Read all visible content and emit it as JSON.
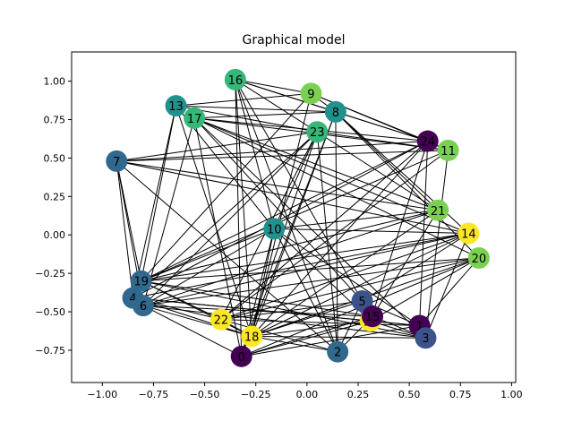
{
  "chart_data": {
    "type": "graph",
    "title": "Graphical model",
    "xlim": [
      -1.15,
      1.02
    ],
    "ylim": [
      -0.96,
      1.19
    ],
    "xticks": [
      -1.0,
      -0.75,
      -0.5,
      -0.25,
      0.0,
      0.25,
      0.5,
      0.75,
      1.0
    ],
    "yticks": [
      -0.75,
      -0.5,
      -0.25,
      0.0,
      0.25,
      0.5,
      0.75,
      1.0
    ],
    "xtick_labels": [
      "−1.00",
      "−0.75",
      "−0.50",
      "−0.25",
      "0.00",
      "0.25",
      "0.50",
      "0.75",
      "1.00"
    ],
    "ytick_labels": [
      "−0.75",
      "−0.50",
      "−0.25",
      "0.00",
      "0.25",
      "0.50",
      "0.75",
      "1.00"
    ],
    "nodes": [
      {
        "id": "0",
        "x": -0.32,
        "y": -0.79,
        "color": "#440154"
      },
      {
        "id": "1",
        "x": 0.55,
        "y": -0.59,
        "color": "#440154"
      },
      {
        "id": "2",
        "x": 0.15,
        "y": -0.76,
        "color": "#31688e"
      },
      {
        "id": "3",
        "x": 0.58,
        "y": -0.67,
        "color": "#3b528b"
      },
      {
        "id": "4",
        "x": -0.85,
        "y": -0.41,
        "color": "#31688e"
      },
      {
        "id": "5",
        "x": 0.27,
        "y": -0.43,
        "color": "#3b528b"
      },
      {
        "id": "6",
        "x": -0.8,
        "y": -0.46,
        "color": "#31688e"
      },
      {
        "id": "7",
        "x": -0.93,
        "y": 0.48,
        "color": "#31688e"
      },
      {
        "id": "8",
        "x": 0.14,
        "y": 0.8,
        "color": "#21918c"
      },
      {
        "id": "9",
        "x": 0.02,
        "y": 0.92,
        "color": "#7ad151"
      },
      {
        "id": "10",
        "x": -0.16,
        "y": 0.04,
        "color": "#21918c"
      },
      {
        "id": "11",
        "x": 0.69,
        "y": 0.55,
        "color": "#7ad151"
      },
      {
        "id": "12",
        "x": 0.31,
        "y": -0.56,
        "color": "#fde725"
      },
      {
        "id": "13",
        "x": -0.64,
        "y": 0.84,
        "color": "#21918c"
      },
      {
        "id": "14",
        "x": 0.79,
        "y": 0.01,
        "color": "#fde725"
      },
      {
        "id": "15",
        "x": 0.32,
        "y": -0.53,
        "color": "#440154"
      },
      {
        "id": "16",
        "x": -0.35,
        "y": 1.01,
        "color": "#35b779"
      },
      {
        "id": "17",
        "x": -0.55,
        "y": 0.76,
        "color": "#35b779"
      },
      {
        "id": "18",
        "x": -0.27,
        "y": -0.66,
        "color": "#fde725"
      },
      {
        "id": "19",
        "x": -0.81,
        "y": -0.3,
        "color": "#31688e"
      },
      {
        "id": "20",
        "x": 0.84,
        "y": -0.15,
        "color": "#7ad151"
      },
      {
        "id": "21",
        "x": 0.64,
        "y": 0.16,
        "color": "#7ad151"
      },
      {
        "id": "22",
        "x": -0.42,
        "y": -0.55,
        "color": "#fde725"
      },
      {
        "id": "23",
        "x": 0.05,
        "y": 0.67,
        "color": "#35b779"
      },
      {
        "id": "24",
        "x": 0.59,
        "y": 0.61,
        "color": "#440154"
      }
    ],
    "edges": [
      [
        "7",
        "24"
      ],
      [
        "7",
        "21"
      ],
      [
        "7",
        "14"
      ],
      [
        "7",
        "19"
      ],
      [
        "7",
        "4"
      ],
      [
        "7",
        "6"
      ],
      [
        "7",
        "23"
      ],
      [
        "7",
        "11"
      ],
      [
        "7",
        "2"
      ],
      [
        "13",
        "19"
      ],
      [
        "13",
        "4"
      ],
      [
        "13",
        "18"
      ],
      [
        "13",
        "8"
      ],
      [
        "13",
        "10"
      ],
      [
        "13",
        "23"
      ],
      [
        "13",
        "9"
      ],
      [
        "16",
        "9"
      ],
      [
        "16",
        "8"
      ],
      [
        "16",
        "23"
      ],
      [
        "16",
        "18"
      ],
      [
        "16",
        "10"
      ],
      [
        "16",
        "24"
      ],
      [
        "16",
        "5"
      ],
      [
        "16",
        "2"
      ],
      [
        "17",
        "8"
      ],
      [
        "17",
        "24"
      ],
      [
        "17",
        "14"
      ],
      [
        "17",
        "20"
      ],
      [
        "17",
        "21"
      ],
      [
        "17",
        "0"
      ],
      [
        "17",
        "6"
      ],
      [
        "17",
        "5"
      ],
      [
        "17",
        "3"
      ],
      [
        "17",
        "11"
      ],
      [
        "9",
        "8"
      ],
      [
        "9",
        "24"
      ],
      [
        "9",
        "18"
      ],
      [
        "9",
        "19"
      ],
      [
        "9",
        "11"
      ],
      [
        "8",
        "24"
      ],
      [
        "8",
        "21"
      ],
      [
        "8",
        "20"
      ],
      [
        "8",
        "18"
      ],
      [
        "8",
        "0"
      ],
      [
        "8",
        "2"
      ],
      [
        "8",
        "14"
      ],
      [
        "23",
        "11"
      ],
      [
        "23",
        "4"
      ],
      [
        "23",
        "6"
      ],
      [
        "23",
        "22"
      ],
      [
        "23",
        "0"
      ],
      [
        "23",
        "2"
      ],
      [
        "23",
        "21"
      ],
      [
        "23",
        "10"
      ],
      [
        "24",
        "11"
      ],
      [
        "24",
        "1"
      ],
      [
        "24",
        "4"
      ],
      [
        "24",
        "19"
      ],
      [
        "24",
        "22"
      ],
      [
        "24",
        "18"
      ],
      [
        "24",
        "12"
      ],
      [
        "11",
        "19"
      ],
      [
        "11",
        "22"
      ],
      [
        "11",
        "3"
      ],
      [
        "21",
        "19"
      ],
      [
        "21",
        "6"
      ],
      [
        "21",
        "18"
      ],
      [
        "21",
        "15"
      ],
      [
        "21",
        "10"
      ],
      [
        "14",
        "19"
      ],
      [
        "14",
        "4"
      ],
      [
        "14",
        "6"
      ],
      [
        "14",
        "22"
      ],
      [
        "14",
        "18"
      ],
      [
        "14",
        "5"
      ],
      [
        "14",
        "3"
      ],
      [
        "20",
        "19"
      ],
      [
        "20",
        "6"
      ],
      [
        "20",
        "22"
      ],
      [
        "20",
        "18"
      ],
      [
        "20",
        "0"
      ],
      [
        "20",
        "12"
      ],
      [
        "20",
        "1"
      ],
      [
        "10",
        "19"
      ],
      [
        "10",
        "6"
      ],
      [
        "10",
        "18"
      ],
      [
        "10",
        "2"
      ],
      [
        "10",
        "12"
      ],
      [
        "10",
        "1"
      ],
      [
        "10",
        "14"
      ],
      [
        "19",
        "22"
      ],
      [
        "19",
        "15"
      ],
      [
        "19",
        "3"
      ],
      [
        "19",
        "18"
      ],
      [
        "4",
        "22"
      ],
      [
        "4",
        "12"
      ],
      [
        "4",
        "1"
      ],
      [
        "4",
        "18"
      ],
      [
        "6",
        "18"
      ],
      [
        "6",
        "15"
      ],
      [
        "6",
        "3"
      ],
      [
        "6",
        "0"
      ],
      [
        "22",
        "18"
      ],
      [
        "22",
        "5"
      ],
      [
        "22",
        "2"
      ],
      [
        "22",
        "1"
      ],
      [
        "18",
        "12"
      ],
      [
        "18",
        "3"
      ],
      [
        "18",
        "2"
      ],
      [
        "18",
        "5"
      ],
      [
        "0",
        "15"
      ],
      [
        "0",
        "12"
      ],
      [
        "0",
        "1"
      ],
      [
        "0",
        "10"
      ],
      [
        "0",
        "16"
      ],
      [
        "2",
        "15"
      ],
      [
        "2",
        "5"
      ],
      [
        "5",
        "15"
      ],
      [
        "5",
        "1"
      ],
      [
        "12",
        "1"
      ],
      [
        "15",
        "3"
      ],
      [
        "12",
        "3"
      ]
    ]
  }
}
